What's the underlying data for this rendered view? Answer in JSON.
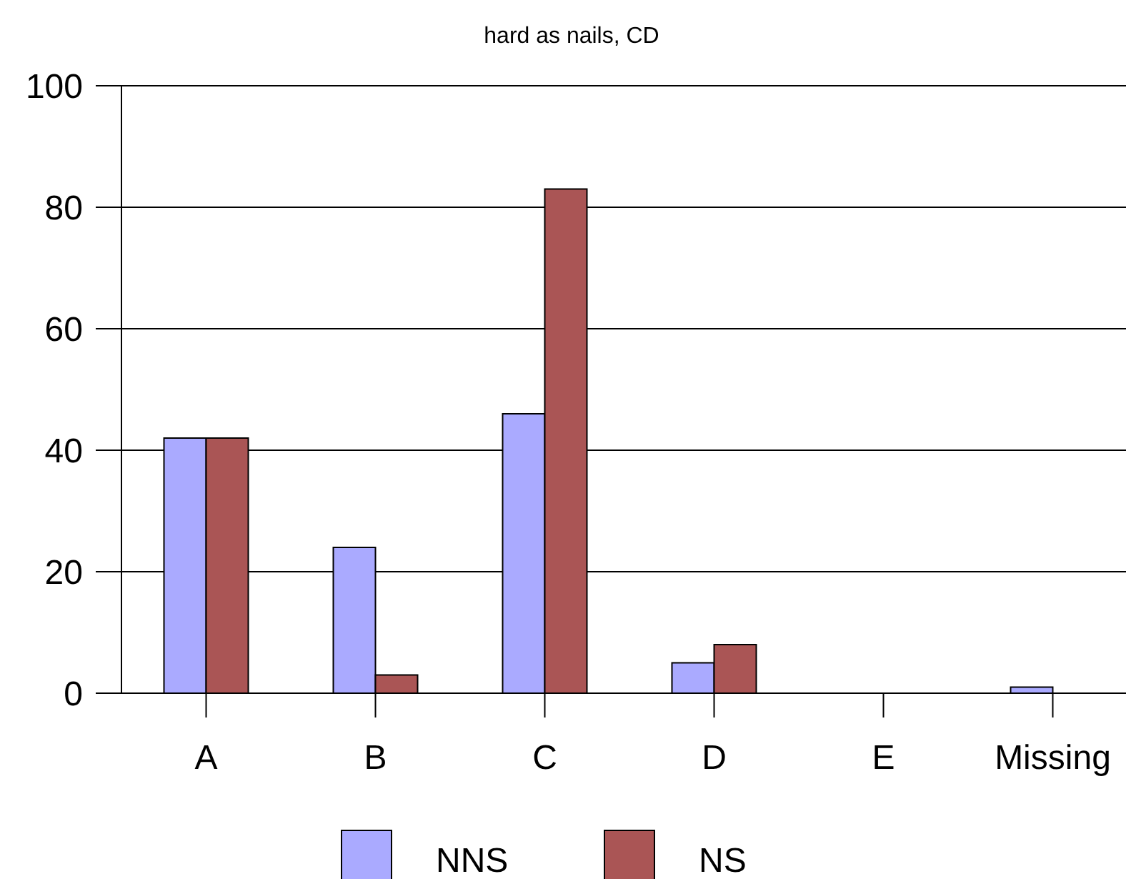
{
  "chart_data": {
    "type": "bar",
    "title": "hard as nails, CD",
    "categories": [
      "A",
      "B",
      "C",
      "D",
      "E",
      "Missing"
    ],
    "series": [
      {
        "name": "NNS",
        "color": "#aaaaff",
        "values": [
          42,
          24,
          46,
          5,
          0,
          1
        ]
      },
      {
        "name": "NS",
        "color": "#aa5555",
        "values": [
          42,
          3,
          83,
          8,
          0,
          0
        ]
      }
    ],
    "ylim": [
      0,
      100
    ],
    "yticks": [
      0,
      20,
      40,
      60,
      80,
      100
    ],
    "grid": "y",
    "legend": "bottom"
  }
}
